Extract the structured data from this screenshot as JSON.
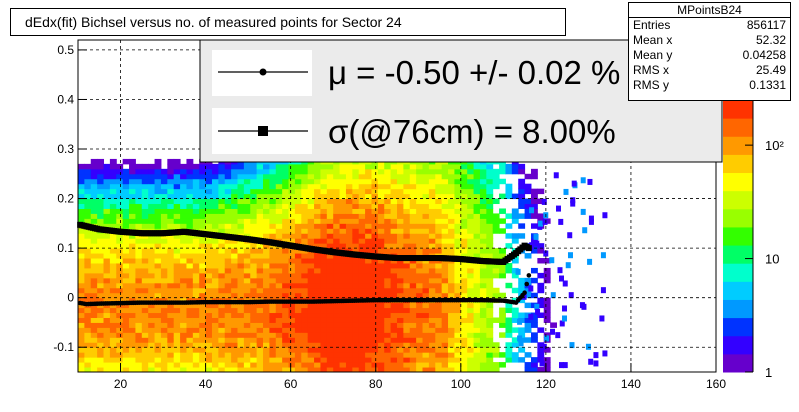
{
  "title": "dEdx(fit) Bichsel versus no. of measured points for Sector 24",
  "stats": {
    "name": "MPointsB24",
    "rows": [
      {
        "label": "Entries",
        "value": "856117"
      },
      {
        "label": "Mean x",
        "value": "52.32"
      },
      {
        "label": "Mean y",
        "value": "0.04258"
      },
      {
        "label": "RMS x",
        "value": "25.49"
      },
      {
        "label": "RMS y",
        "value": "0.1331"
      }
    ]
  },
  "legend": {
    "mu_text": "μ  = -0.50 +/-  0.02 %",
    "sigma_text": "σ(@76cm) =  8.00%"
  },
  "colorbar": {
    "ticks": [
      {
        "value": 1,
        "label": "1"
      },
      {
        "value": 10,
        "label": "10"
      },
      {
        "value": 100,
        "label": "10²"
      }
    ],
    "palette": [
      "#6600cc",
      "#3300ff",
      "#0033ff",
      "#0099ff",
      "#00ccff",
      "#00ffcc",
      "#00ff66",
      "#33ff00",
      "#99ff00",
      "#ccff00",
      "#ffff00",
      "#ffcc00",
      "#ff9900",
      "#ff6600",
      "#ff3300"
    ]
  },
  "chart_data": {
    "type": "heatmap",
    "title": "dEdx(fit) Bichsel versus no. of measured points for Sector 24",
    "xlim": [
      10,
      160
    ],
    "ylim": [
      -0.15,
      0.52
    ],
    "x_ticks": [
      20,
      40,
      60,
      80,
      100,
      120,
      140,
      160
    ],
    "y_ticks": [
      -0.1,
      0,
      0.1,
      0.2,
      0.3,
      0.4,
      0.5
    ],
    "grid": true,
    "z_scale": "log",
    "series": [
      {
        "name": "μ",
        "x": [
          10,
          12,
          15,
          20,
          25,
          30,
          35,
          40,
          45,
          50,
          55,
          60,
          65,
          70,
          75,
          80,
          85,
          90,
          95,
          100,
          105,
          110,
          113,
          115,
          116
        ],
        "y": [
          -0.01,
          -0.013,
          -0.012,
          -0.011,
          -0.01,
          -0.01,
          -0.01,
          -0.009,
          -0.009,
          -0.009,
          -0.008,
          -0.008,
          -0.008,
          -0.007,
          -0.006,
          -0.005,
          -0.005,
          -0.005,
          -0.005,
          -0.005,
          -0.005,
          -0.006,
          -0.01,
          0.01,
          0.045
        ]
      },
      {
        "name": "σ(@76cm)",
        "x": [
          10,
          12,
          15,
          20,
          25,
          30,
          35,
          40,
          45,
          50,
          55,
          60,
          65,
          70,
          75,
          80,
          85,
          90,
          95,
          100,
          105,
          110,
          113,
          115,
          116
        ],
        "y": [
          0.148,
          0.144,
          0.138,
          0.133,
          0.13,
          0.13,
          0.133,
          0.128,
          0.123,
          0.118,
          0.112,
          0.105,
          0.098,
          0.092,
          0.087,
          0.083,
          0.08,
          0.08,
          0.08,
          0.078,
          0.074,
          0.072,
          0.09,
          0.105,
          0.1
        ]
      }
    ]
  }
}
